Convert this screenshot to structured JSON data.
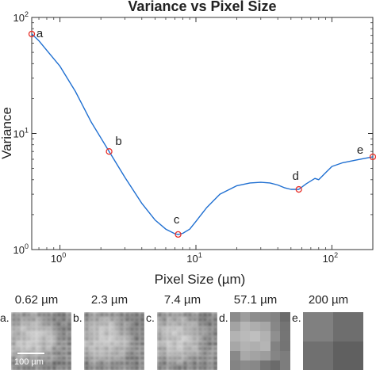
{
  "chart_data": {
    "type": "line",
    "title": "Variance vs Pixel Size",
    "xlabel": "Pixel Size (µm)",
    "ylabel": "Variance",
    "xscale": "log",
    "yscale": "log",
    "xlim": [
      0.62,
      200
    ],
    "ylim": [
      1,
      100
    ],
    "x_ticks": [
      {
        "value": 1,
        "base": "10",
        "exp": "0"
      },
      {
        "value": 10,
        "base": "10",
        "exp": "1"
      },
      {
        "value": 100,
        "base": "10",
        "exp": "2"
      }
    ],
    "y_ticks": [
      {
        "value": 1,
        "base": "10",
        "exp": "0"
      },
      {
        "value": 10,
        "base": "10",
        "exp": "1"
      },
      {
        "value": 100,
        "base": "10",
        "exp": "2"
      }
    ],
    "line_color": "#1f6fd1",
    "marker_color": "#e8312a",
    "series": [
      {
        "x": [
          0.62,
          0.7,
          0.8,
          1.0,
          1.3,
          1.7,
          2.3,
          3.0,
          4.0,
          5.0,
          6.0,
          7.0,
          7.4,
          8.0,
          9.0,
          10,
          12,
          15,
          20,
          25,
          30,
          35,
          40,
          45,
          50,
          57.1,
          65,
          75,
          80,
          90,
          100,
          120,
          150,
          200
        ],
        "y": [
          72,
          63,
          52,
          38,
          23,
          12.5,
          7.0,
          4.2,
          2.5,
          1.8,
          1.5,
          1.37,
          1.35,
          1.38,
          1.5,
          1.75,
          2.3,
          3.0,
          3.55,
          3.75,
          3.8,
          3.75,
          3.6,
          3.4,
          3.3,
          3.3,
          3.7,
          4.1,
          4.0,
          4.6,
          5.2,
          5.6,
          5.9,
          6.3
        ]
      }
    ],
    "points": [
      {
        "label": "a",
        "x": 0.62,
        "y": 72
      },
      {
        "label": "b",
        "x": 2.3,
        "y": 7.0
      },
      {
        "label": "c",
        "x": 7.4,
        "y": 1.35
      },
      {
        "label": "d",
        "x": 57.1,
        "y": 3.3
      },
      {
        "label": "e",
        "x": 200,
        "y": 6.3
      }
    ]
  },
  "thumbnails": [
    {
      "letter": "a.",
      "size_label": "0.62 µm",
      "style": "fine",
      "scale_label": "100 µm"
    },
    {
      "letter": "b.",
      "size_label": "2.3 µm",
      "style": "fine"
    },
    {
      "letter": "c.",
      "size_label": "7.4 µm",
      "style": "fine"
    },
    {
      "letter": "d.",
      "size_label": "57.1 µm",
      "style": "blocks6"
    },
    {
      "letter": "e.",
      "size_label": "200 µm",
      "style": "blocks2"
    }
  ]
}
